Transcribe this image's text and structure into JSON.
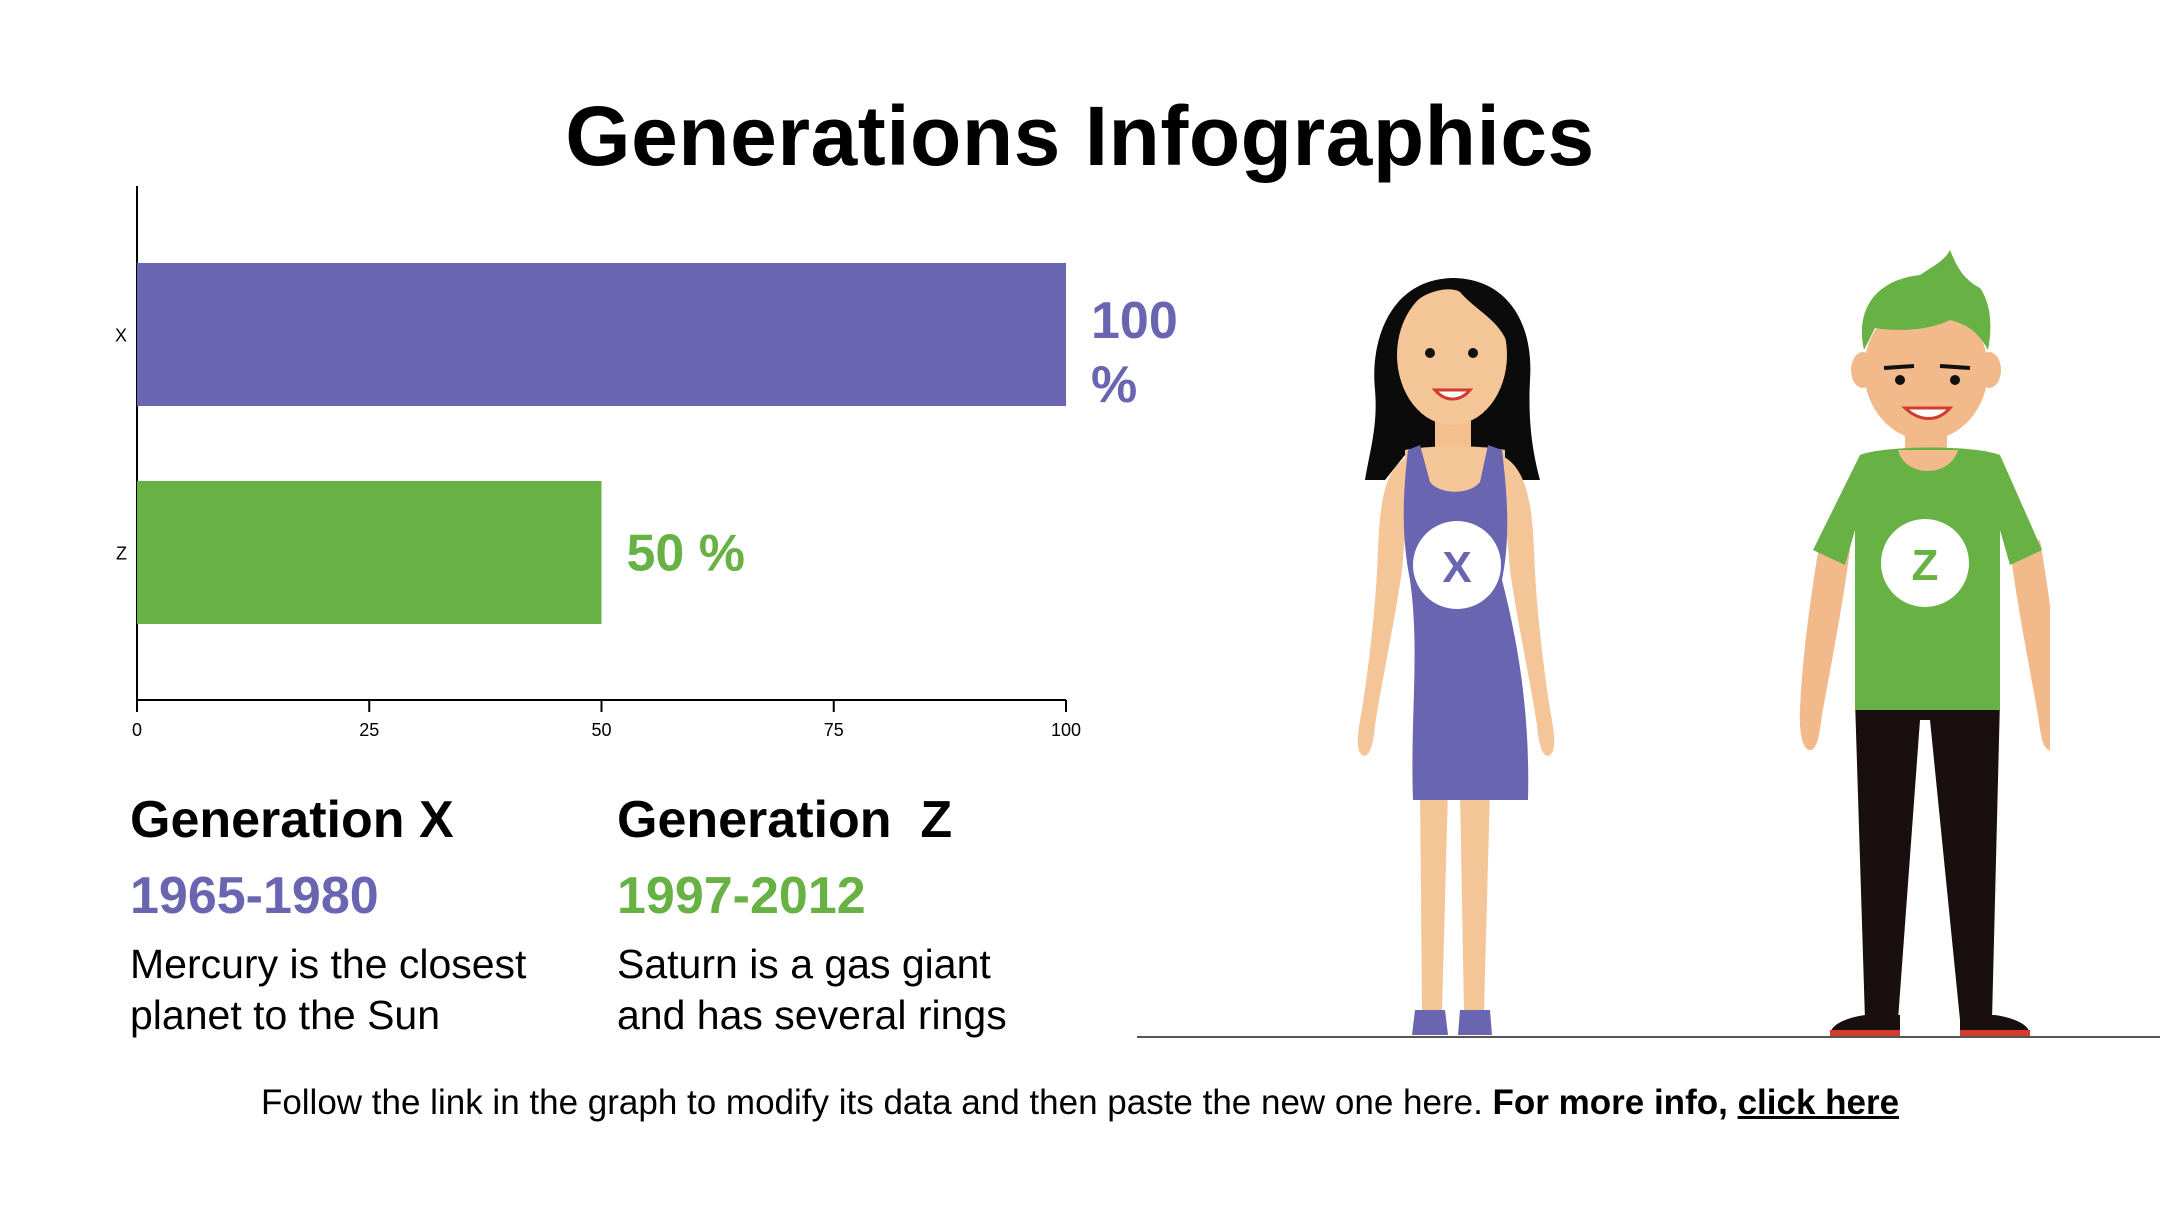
{
  "title": "Generations Infographics",
  "colors": {
    "gen_x": "#6965b0",
    "gen_z": "#67b145",
    "axis": "#000000"
  },
  "chart_data": {
    "type": "bar",
    "orientation": "horizontal",
    "categories": [
      "X",
      "Z"
    ],
    "values": [
      100,
      50
    ],
    "value_labels": [
      "100 %",
      "50 %"
    ],
    "xlim": [
      0,
      100
    ],
    "xticks": [
      "0",
      "25",
      "50",
      "75",
      "100"
    ],
    "title": "",
    "xlabel": "",
    "ylabel": "",
    "grid": false
  },
  "generations": [
    {
      "name": "Generation X",
      "years": "1965-1980",
      "desc_line1": "Mercury is the closest",
      "desc_line2": "planet to the Sun",
      "badge": "X"
    },
    {
      "name": "Generation  Z",
      "years": "1997-2012",
      "desc_line1": "Saturn is a gas giant",
      "desc_line2": "and has several rings",
      "badge": "Z"
    }
  ],
  "footer": {
    "text": "Follow the link in the graph to modify its data and then paste the new one here.",
    "bold": "For more info,",
    "link": "click here"
  }
}
